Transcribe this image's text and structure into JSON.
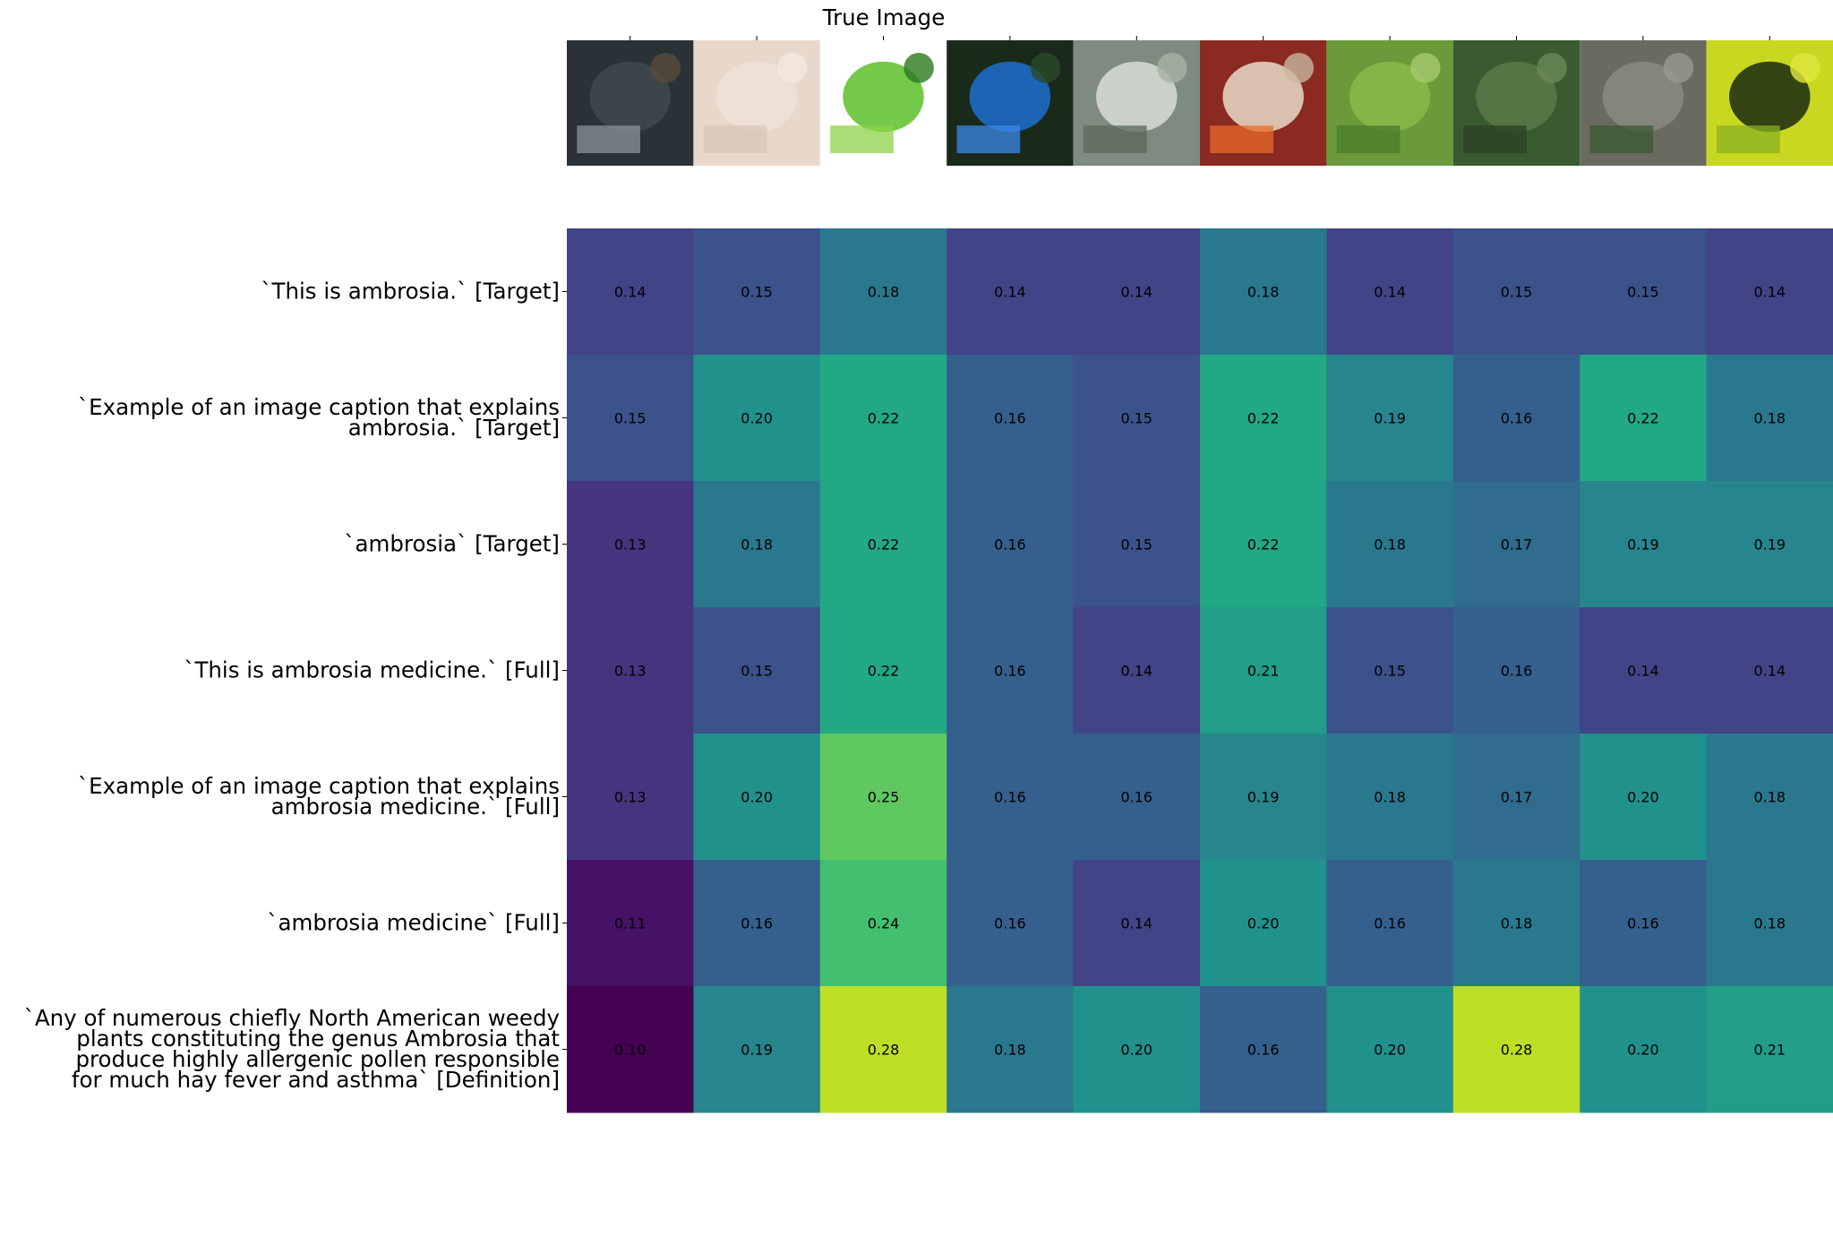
{
  "chart_data": {
    "type": "heatmap",
    "title": "True Image",
    "column_images": [
      {
        "icon": "sturgeon-fish-underwater-photo",
        "colors": [
          "#2a3238",
          "#3f4a4d",
          "#8a9598",
          "#5a4a3a"
        ]
      },
      {
        "icon": "thin-coiled-filament-photo",
        "colors": [
          "#e8d8cc",
          "#efe2d8",
          "#d9c6b8",
          "#f2e8e0"
        ]
      },
      {
        "icon": "ragweed-allergy-relief-medicine-box",
        "colors": [
          "#ffffff",
          "#5cc02a",
          "#8fd14a",
          "#2a7a1a"
        ]
      },
      {
        "icon": "blue-morning-glory-flowers-photo",
        "colors": [
          "#1a2a1a",
          "#1f6fd0",
          "#3a8ae8",
          "#2a4a2a"
        ]
      },
      {
        "icon": "white-flowers-gray-foliage-photo",
        "colors": [
          "#7f8a80",
          "#d8ddd6",
          "#5a665a",
          "#a8b2a6"
        ]
      },
      {
        "icon": "fruit-topped-pudding-bowl-photo",
        "colors": [
          "#8a2a22",
          "#e8dcc8",
          "#e86a2a",
          "#c8b8a0"
        ]
      },
      {
        "icon": "green-shrub-foliage-photo",
        "colors": [
          "#6a9a3a",
          "#8ab84a",
          "#4a7a2a",
          "#a8c870"
        ]
      },
      {
        "icon": "ragweed-plant-foliage-photo",
        "colors": [
          "#3a5a30",
          "#5a7a48",
          "#2a4224",
          "#6a8a58"
        ]
      },
      {
        "icon": "leaf-on-tree-bark-photo",
        "colors": [
          "#6a6a60",
          "#8a8a80",
          "#3a5a30",
          "#9a9a90"
        ]
      },
      {
        "icon": "yellow-green-pinnate-leaves-photo",
        "colors": [
          "#c8d820",
          "#1a2a10",
          "#8ab020",
          "#e0e840"
        ]
      }
    ],
    "rows": [
      "`This is ambrosia.` [Target]",
      "`Example of an image caption that explains\nambrosia.` [Target]",
      "`ambrosia` [Target]",
      "`This is ambrosia medicine.` [Full]",
      "`Example of an image caption that explains\nambrosia medicine.` [Full]",
      "`ambrosia medicine` [Full]",
      "`Any of numerous chiefly North American weedy\nplants constituting the genus Ambrosia that\nproduce highly allergenic pollen responsible\nfor much hay fever and asthma` [Definition]"
    ],
    "values": [
      [
        0.14,
        0.15,
        0.18,
        0.14,
        0.14,
        0.18,
        0.14,
        0.15,
        0.15,
        0.14
      ],
      [
        0.15,
        0.2,
        0.22,
        0.16,
        0.15,
        0.22,
        0.19,
        0.16,
        0.22,
        0.18
      ],
      [
        0.13,
        0.18,
        0.22,
        0.16,
        0.15,
        0.22,
        0.18,
        0.17,
        0.19,
        0.19
      ],
      [
        0.13,
        0.15,
        0.22,
        0.16,
        0.14,
        0.21,
        0.15,
        0.16,
        0.14,
        0.14
      ],
      [
        0.13,
        0.2,
        0.25,
        0.16,
        0.16,
        0.19,
        0.18,
        0.17,
        0.2,
        0.18
      ],
      [
        0.11,
        0.16,
        0.24,
        0.16,
        0.14,
        0.2,
        0.16,
        0.18,
        0.16,
        0.18
      ],
      [
        0.1,
        0.19,
        0.28,
        0.18,
        0.2,
        0.16,
        0.2,
        0.28,
        0.2,
        0.21
      ]
    ],
    "value_format": "2 decimals",
    "colormap": "viridis",
    "vmin": 0.1,
    "vmax": 0.3,
    "grid": false,
    "legend": "none"
  }
}
